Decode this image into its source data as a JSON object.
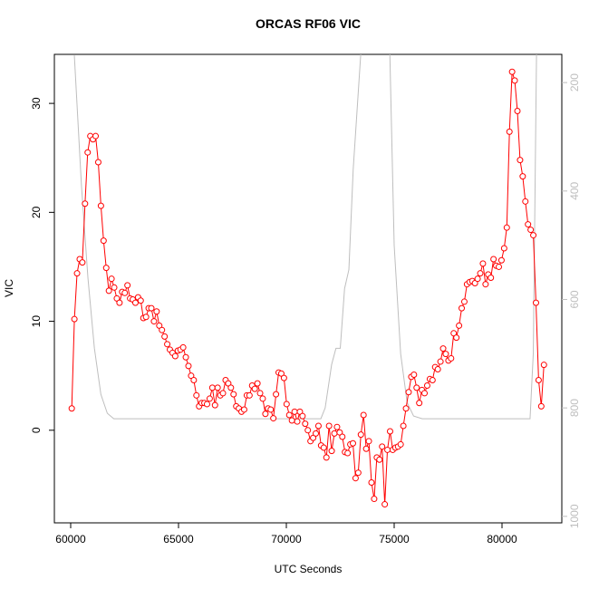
{
  "chart_data": {
    "type": "line",
    "title": "ORCAS RF06 VIC",
    "x_label": "UTC Seconds",
    "y_label": "VIC",
    "xlim": [
      59244,
      82773
    ],
    "xticks": [
      60000,
      65000,
      70000,
      75000,
      80000
    ],
    "ylim": [
      -8.5,
      34.5
    ],
    "yticks": [
      0,
      10,
      20,
      30
    ],
    "y2lim": [
      1012,
      148
    ],
    "y2ticks": [
      200,
      400,
      600,
      800,
      1000
    ],
    "series": [
      {
        "color": "#ff0000",
        "marker": "circle",
        "x": [
          60050,
          60173,
          60296,
          60419,
          60542,
          60665,
          60788,
          60911,
          61034,
          61157,
          61280,
          61403,
          61526,
          61649,
          61772,
          61895,
          62018,
          62141,
          62264,
          62387,
          62510,
          62633,
          62756,
          62879,
          63002,
          63125,
          63248,
          63371,
          63494,
          63617,
          63740,
          63863,
          63986,
          64109,
          64232,
          64355,
          64478,
          64601,
          64724,
          64847,
          64970,
          65093,
          65216,
          65339,
          65462,
          65585,
          65708,
          65831,
          65954,
          66077,
          66200,
          66323,
          66446,
          66569,
          66692,
          66815,
          66938,
          67061,
          67184,
          67307,
          67430,
          67553,
          67676,
          67799,
          67922,
          68045,
          68168,
          68291,
          68414,
          68537,
          68660,
          68783,
          68906,
          69029,
          69152,
          69275,
          69398,
          69521,
          69644,
          69767,
          69890,
          70013,
          70136,
          70259,
          70382,
          70505,
          70628,
          70751,
          70874,
          70997,
          71120,
          71243,
          71366,
          71489,
          71612,
          71735,
          71858,
          71981,
          72104,
          72227,
          72350,
          72473,
          72596,
          72719,
          72842,
          72965,
          73088,
          73211,
          73334,
          73457,
          73580,
          73703,
          73826,
          73949,
          74072,
          74195,
          74318,
          74441,
          74564,
          74687,
          74810,
          74933,
          75056,
          75179,
          75302,
          75425,
          75548,
          75671,
          75794,
          75917,
          76040,
          76163,
          76286,
          76409,
          76532,
          76655,
          76778,
          76901,
          77024,
          77147,
          77270,
          77393,
          77516,
          77639,
          77762,
          77885,
          78008,
          78131,
          78254,
          78377,
          78500,
          78623,
          78746,
          78869,
          78992,
          79115,
          79238,
          79361,
          79484,
          79607,
          79730,
          79853,
          79976,
          80099,
          80222,
          80345,
          80468,
          80591,
          80714,
          80837,
          80960,
          81083,
          81206,
          81329,
          81452,
          81575,
          81698,
          81821,
          81944
        ],
        "values": [
          2.0,
          10.2,
          14.4,
          15.7,
          15.4,
          20.8,
          25.5,
          27.0,
          26.7,
          27.0,
          24.6,
          20.6,
          17.4,
          14.9,
          12.8,
          13.9,
          13.1,
          12.1,
          11.7,
          12.7,
          12.6,
          13.3,
          12.1,
          12.0,
          11.7,
          12.2,
          11.9,
          10.3,
          10.4,
          11.2,
          11.2,
          10.0,
          10.9,
          9.6,
          9.2,
          8.6,
          7.9,
          7.4,
          7.1,
          6.8,
          7.3,
          7.4,
          7.6,
          6.7,
          5.9,
          5.0,
          4.6,
          3.2,
          2.2,
          2.5,
          2.5,
          2.4,
          2.9,
          3.9,
          2.3,
          3.9,
          3.2,
          3.4,
          4.6,
          4.3,
          3.9,
          3.3,
          2.2,
          2.0,
          1.7,
          1.9,
          3.2,
          3.2,
          4.1,
          3.8,
          4.3,
          3.4,
          2.9,
          1.5,
          2.0,
          1.9,
          1.1,
          3.3,
          5.3,
          5.2,
          4.8,
          2.4,
          1.4,
          0.9,
          1.7,
          0.8,
          1.7,
          1.3,
          0.6,
          0.0,
          -1.0,
          -0.7,
          -0.3,
          0.4,
          -1.4,
          -1.6,
          -2.5,
          0.4,
          -1.9,
          -0.3,
          0.3,
          -0.2,
          -0.6,
          -2.0,
          -2.1,
          -1.3,
          -1.2,
          -4.4,
          -3.9,
          -0.4,
          1.4,
          -1.7,
          -1.0,
          -4.8,
          -6.3,
          -2.5,
          -2.7,
          -1.5,
          -6.8,
          -1.8,
          -0.1,
          -1.8,
          -1.6,
          -1.5,
          -1.3,
          0.4,
          2.0,
          3.5,
          4.9,
          5.1,
          3.9,
          2.5,
          3.7,
          3.4,
          4.1,
          4.7,
          4.6,
          5.8,
          5.6,
          6.3,
          7.5,
          7.0,
          6.4,
          6.6,
          8.9,
          8.5,
          9.6,
          11.2,
          11.8,
          13.4,
          13.6,
          13.7,
          13.5,
          13.9,
          14.4,
          15.3,
          13.4,
          14.3,
          14.0,
          15.7,
          15.1,
          15.0,
          15.6,
          16.7,
          18.6,
          27.4,
          32.9,
          32.1,
          29.3,
          24.8,
          23.3,
          21.0,
          18.9,
          18.4,
          17.9,
          11.7,
          4.6,
          2.2,
          6.0
        ]
      },
      {
        "color": "#bebebe",
        "axis": "y2",
        "x": [
          60170,
          60500,
          60800,
          61100,
          61400,
          61700,
          62000,
          71600,
          71800,
          72100,
          72300,
          72500,
          72700,
          72900,
          73100,
          73450,
          74100,
          74800,
          75000,
          75300,
          75600,
          75900,
          76300,
          81300,
          81450,
          81600
        ],
        "values": [
          150,
          390,
          560,
          690,
          775,
          810,
          820,
          820,
          800,
          720,
          690,
          690,
          580,
          545,
          360,
          148,
          null,
          148,
          500,
          700,
          790,
          815,
          820,
          820,
          700,
          148
        ]
      }
    ]
  }
}
